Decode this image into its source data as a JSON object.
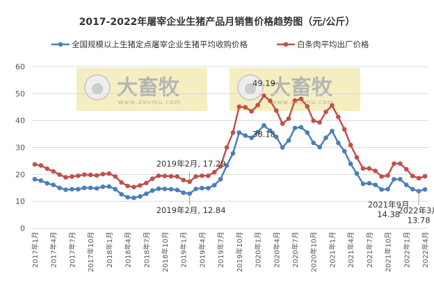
{
  "chart_data": {
    "type": "line",
    "title": "2017-2022年屠宰企业生猪产品月销售价格趋势图（元/公斤）",
    "xlabel": "",
    "ylabel": "",
    "ylim": [
      0,
      60
    ],
    "yticks": [
      0,
      10,
      20,
      30,
      40,
      50,
      60
    ],
    "grid": true,
    "legend_position": "top",
    "x_tick_labels": [
      "2017年1月",
      "2017年4月",
      "2017年7月",
      "2017年10月",
      "2018年1月",
      "2018年4月",
      "2018年7月",
      "2018年10月",
      "2019年1月",
      "2019年4月",
      "2019年7月",
      "2019年10月",
      "2020年1月",
      "2020年4月",
      "2020年7月",
      "2020年10月",
      "2021年1月",
      "2021年4月",
      "2021年7月",
      "2021年10月",
      "2022年1月",
      "2022年4月"
    ],
    "x_start": "2017年1月",
    "x_end": "2022年4月",
    "series": [
      {
        "name": "全国规模以上生猪定点屠宰企业生猪平均收购价格",
        "color": "#4a7ebb",
        "values": [
          18.2,
          17.7,
          16.7,
          16.1,
          15.0,
          14.3,
          14.5,
          14.5,
          15.0,
          15.0,
          14.8,
          15.4,
          15.5,
          14.5,
          12.6,
          11.5,
          11.3,
          11.8,
          12.8,
          14.0,
          14.7,
          14.6,
          14.5,
          14.2,
          13.2,
          12.84,
          14.6,
          14.9,
          14.9,
          16.0,
          18.2,
          23.3,
          27.8,
          35.5,
          34.4,
          33.6,
          35.7,
          38.18,
          36.2,
          33.9,
          30.0,
          32.6,
          37.2,
          37.5,
          35.5,
          31.7,
          30.1,
          33.6,
          36.1,
          31.7,
          28.6,
          23.9,
          20.3,
          16.5,
          16.7,
          16.1,
          14.38,
          14.5,
          18.2,
          18.2,
          16.1,
          14.5,
          13.78,
          14.4
        ]
      },
      {
        "name": "白条肉平均出厂价格",
        "color": "#c0504d",
        "values": [
          23.7,
          23.3,
          22.1,
          21.1,
          19.9,
          18.9,
          19.2,
          19.5,
          19.9,
          19.8,
          19.6,
          20.1,
          20.3,
          19.2,
          17.0,
          15.7,
          15.3,
          15.9,
          16.8,
          18.4,
          19.5,
          19.4,
          19.3,
          19.2,
          17.9,
          17.29,
          19.2,
          19.5,
          19.5,
          20.8,
          23.0,
          30.0,
          35.5,
          45.1,
          44.9,
          43.4,
          45.7,
          49.19,
          47.3,
          43.7,
          38.8,
          40.7,
          47.4,
          48.0,
          45.2,
          39.9,
          39.3,
          43.2,
          45.6,
          41.3,
          36.7,
          30.9,
          26.3,
          22.2,
          22.2,
          21.3,
          19.2,
          19.6,
          24.0,
          24.0,
          21.9,
          19.4,
          18.6,
          19.3
        ]
      }
    ],
    "annotations": [
      {
        "text": "2019年2月, 17.29",
        "series": 1,
        "index": 25
      },
      {
        "text": "2019年2月, 12.84",
        "series": 0,
        "index": 25
      },
      {
        "text": "49.19",
        "series": 1,
        "index": 37
      },
      {
        "text": "38.18",
        "series": 0,
        "index": 37
      },
      {
        "text": "2021年9月",
        "text2": "14.38",
        "series": 0,
        "index": 56
      },
      {
        "text": "2022年3月",
        "text2": "13.78",
        "series": 0,
        "index": 62
      }
    ]
  },
  "watermark": {
    "brand": "大畜牧",
    "url": "www.dxumu.com",
    "background": "#f5eec0"
  }
}
